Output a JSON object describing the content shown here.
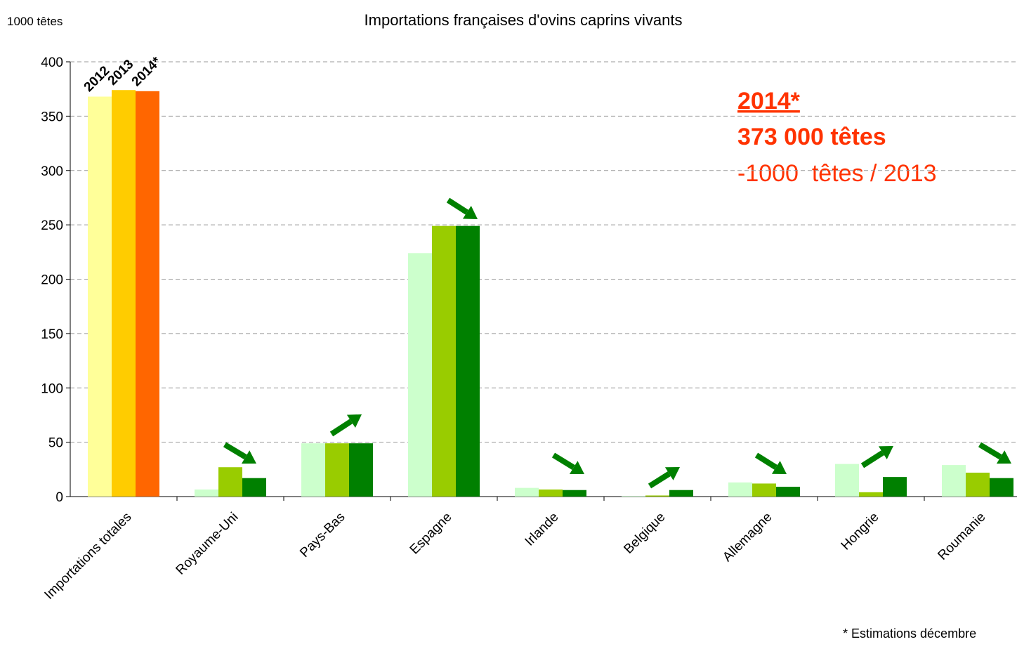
{
  "chart_data": {
    "type": "bar",
    "title": "Importations françaises d'ovins caprins vivants",
    "y_axis_label": "1000 têtes",
    "categories": [
      "Importations totales",
      "Royaume-Uni",
      "Pays-Bas",
      "Espagne",
      "Irlande",
      "Belgique",
      "Allemagne",
      "Hongrie",
      "Roumanie"
    ],
    "series": [
      {
        "name": "2012",
        "color": "#ccffcc",
        "first_color": "#ffff99",
        "values": [
          368,
          6.5,
          49,
          224,
          8,
          0.5,
          13,
          30,
          29
        ]
      },
      {
        "name": "2013",
        "color": "#99cc00",
        "first_color": "#ffcc00",
        "values": [
          374,
          27,
          49,
          249,
          6.5,
          1,
          12,
          4,
          22
        ]
      },
      {
        "name": "2014*",
        "color": "#008000",
        "first_color": "#ff6600",
        "values": [
          373,
          17,
          49,
          249,
          6,
          6,
          9,
          18,
          17
        ]
      }
    ],
    "ylim": [
      0,
      400
    ],
    "yticks": [
      0,
      50,
      100,
      150,
      200,
      250,
      300,
      350,
      400
    ],
    "grid": true,
    "annotations": [
      "2014*",
      "373 000 têtes",
      "-1000  têtes / 2013"
    ],
    "footnote": "* Estimations décembre"
  }
}
